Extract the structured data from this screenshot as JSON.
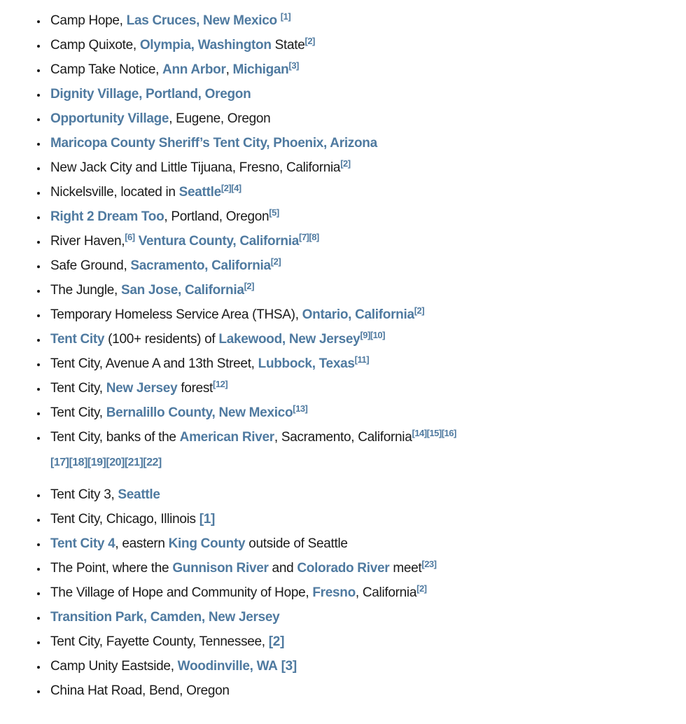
{
  "page": {
    "background_color": "#ffffff",
    "text_color": "#1a1a1a",
    "link_color": "#4f7aa0"
  },
  "list": {
    "items": [
      {
        "segments": [
          {
            "t": "Camp Hope, ",
            "s": "plain"
          },
          {
            "t": "Las Cruces, New Mexico",
            "s": "link"
          },
          {
            "t": " ",
            "s": "plain"
          },
          {
            "t": "[1]",
            "s": "sup"
          }
        ]
      },
      {
        "segments": [
          {
            "t": "Camp Quixote, ",
            "s": "plain"
          },
          {
            "t": "Olympia, Washington",
            "s": "link"
          },
          {
            "t": " State",
            "s": "plain"
          },
          {
            "t": "[2]",
            "s": "sup"
          }
        ]
      },
      {
        "segments": [
          {
            "t": "Camp Take Notice, ",
            "s": "plain"
          },
          {
            "t": "Ann Arbor",
            "s": "link"
          },
          {
            "t": ", ",
            "s": "plain"
          },
          {
            "t": "Michigan",
            "s": "link"
          },
          {
            "t": "[3]",
            "s": "sup"
          }
        ]
      },
      {
        "segments": [
          {
            "t": "Dignity Village, Portland, Oregon",
            "s": "link"
          }
        ]
      },
      {
        "segments": [
          {
            "t": "Opportunity Village",
            "s": "link"
          },
          {
            "t": ", Eugene, Oregon",
            "s": "plain"
          }
        ]
      },
      {
        "segments": [
          {
            "t": "Maricopa County Sheriff’s Tent City, Phoenix, Arizona",
            "s": "link"
          }
        ]
      },
      {
        "segments": [
          {
            "t": "New Jack City and Little Tijuana, Fresno, California",
            "s": "plain"
          },
          {
            "t": "[2]",
            "s": "sup"
          }
        ]
      },
      {
        "segments": [
          {
            "t": "Nickelsville, located in ",
            "s": "plain"
          },
          {
            "t": "Seattle",
            "s": "link"
          },
          {
            "t": "[2][4]",
            "s": "sup"
          }
        ]
      },
      {
        "segments": [
          {
            "t": "Right 2 Dream Too",
            "s": "link"
          },
          {
            "t": ", Portland, Oregon",
            "s": "plain"
          },
          {
            "t": "[5]",
            "s": "sup"
          }
        ]
      },
      {
        "segments": [
          {
            "t": "River Haven,",
            "s": "plain"
          },
          {
            "t": "[6]",
            "s": "sup"
          },
          {
            "t": " ",
            "s": "plain"
          },
          {
            "t": "Ventura County, California",
            "s": "link"
          },
          {
            "t": "[7][8]",
            "s": "sup"
          }
        ]
      },
      {
        "segments": [
          {
            "t": "Safe Ground, ",
            "s": "plain"
          },
          {
            "t": "Sacramento, California",
            "s": "link"
          },
          {
            "t": "[2]",
            "s": "sup"
          }
        ]
      },
      {
        "segments": [
          {
            "t": "The Jungle, ",
            "s": "plain"
          },
          {
            "t": "San Jose, California",
            "s": "link"
          },
          {
            "t": "[2]",
            "s": "sup"
          }
        ]
      },
      {
        "segments": [
          {
            "t": "Temporary Homeless Service Area (THSA), ",
            "s": "plain"
          },
          {
            "t": "Ontario, California",
            "s": "link"
          },
          {
            "t": "[2]",
            "s": "sup"
          }
        ]
      },
      {
        "segments": [
          {
            "t": "Tent City",
            "s": "link"
          },
          {
            "t": " (100+ residents) of ",
            "s": "plain"
          },
          {
            "t": "Lakewood, New Jersey",
            "s": "link"
          },
          {
            "t": "[9][10]",
            "s": "sup"
          }
        ]
      },
      {
        "segments": [
          {
            "t": "Tent City, Avenue A and 13th Street, ",
            "s": "plain"
          },
          {
            "t": "Lubbock, Texas",
            "s": "link"
          },
          {
            "t": "[11]",
            "s": "sup"
          }
        ]
      },
      {
        "segments": [
          {
            "t": "Tent City, ",
            "s": "plain"
          },
          {
            "t": "New Jersey",
            "s": "link"
          },
          {
            "t": " forest",
            "s": "plain"
          },
          {
            "t": "[12]",
            "s": "sup"
          }
        ]
      },
      {
        "segments": [
          {
            "t": "Tent City, ",
            "s": "plain"
          },
          {
            "t": "Bernalillo County, New Mexico",
            "s": "link"
          },
          {
            "t": "[13]",
            "s": "sup"
          }
        ]
      },
      {
        "segments": [
          {
            "t": "Tent City, banks of the ",
            "s": "plain"
          },
          {
            "t": "American River",
            "s": "link"
          },
          {
            "t": ", Sacramento, California",
            "s": "plain"
          },
          {
            "t": "[14][15][16]",
            "s": "sup"
          },
          {
            "s": "br"
          },
          {
            "t": "[17][18][19][20][21][22]",
            "s": "sup2"
          }
        ]
      },
      {
        "gap_before": true,
        "segments": [
          {
            "t": "Tent City 3, ",
            "s": "plain"
          },
          {
            "t": "Seattle",
            "s": "link"
          }
        ]
      },
      {
        "segments": [
          {
            "t": "Tent City, Chicago, Illinois ",
            "s": "plain"
          },
          {
            "t": "[1]",
            "s": "ref"
          }
        ]
      },
      {
        "segments": [
          {
            "t": "Tent City 4",
            "s": "link"
          },
          {
            "t": ", eastern ",
            "s": "plain"
          },
          {
            "t": "King County",
            "s": "link"
          },
          {
            "t": " outside of Seattle",
            "s": "plain"
          }
        ]
      },
      {
        "segments": [
          {
            "t": "The Point, where the ",
            "s": "plain"
          },
          {
            "t": "Gunnison River",
            "s": "link"
          },
          {
            "t": " and ",
            "s": "plain"
          },
          {
            "t": "Colorado River",
            "s": "link"
          },
          {
            "t": " meet",
            "s": "plain"
          },
          {
            "t": "[23]",
            "s": "sup"
          }
        ]
      },
      {
        "segments": [
          {
            "t": "The Village of Hope and Community of Hope, ",
            "s": "plain"
          },
          {
            "t": "Fresno",
            "s": "link"
          },
          {
            "t": ", California",
            "s": "plain"
          },
          {
            "t": "[2]",
            "s": "sup"
          }
        ]
      },
      {
        "segments": [
          {
            "t": "Transition Park, Camden, New Jersey",
            "s": "link"
          }
        ]
      },
      {
        "segments": [
          {
            "t": "Tent City, Fayette County, Tennessee, ",
            "s": "plain"
          },
          {
            "t": "[2]",
            "s": "ref"
          }
        ]
      },
      {
        "segments": [
          {
            "t": "Camp Unity Eastside, ",
            "s": "plain"
          },
          {
            "t": "Woodinville, WA",
            "s": "link"
          },
          {
            "t": " ",
            "s": "plain"
          },
          {
            "t": "[3]",
            "s": "ref"
          }
        ]
      },
      {
        "segments": [
          {
            "t": "China Hat Road, Bend, Oregon",
            "s": "plain"
          }
        ]
      }
    ]
  }
}
